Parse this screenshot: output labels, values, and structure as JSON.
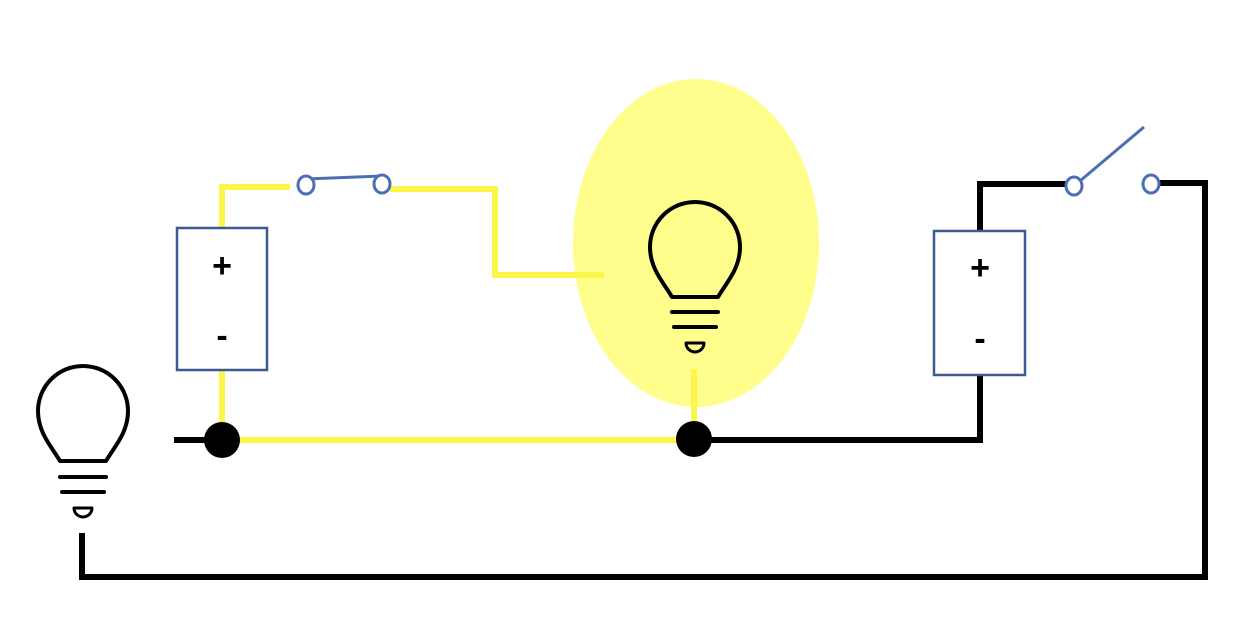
{
  "diagram": {
    "colors": {
      "wire_active": "#fcf64a",
      "wire_inactive": "#000000",
      "glow": "#fffd8c",
      "switch": "#4a6fb5",
      "battery_border": "#3b5a94",
      "junction": "#000000"
    },
    "batteries": [
      {
        "id": "battery-left",
        "plus": "+",
        "minus": "-"
      },
      {
        "id": "battery-right",
        "plus": "+",
        "minus": "-"
      }
    ],
    "bulbs": [
      {
        "id": "bulb-left",
        "lit": false
      },
      {
        "id": "bulb-center",
        "lit": true
      }
    ],
    "switches": [
      {
        "id": "switch-left",
        "closed": true
      },
      {
        "id": "switch-right",
        "closed": false
      }
    ]
  }
}
